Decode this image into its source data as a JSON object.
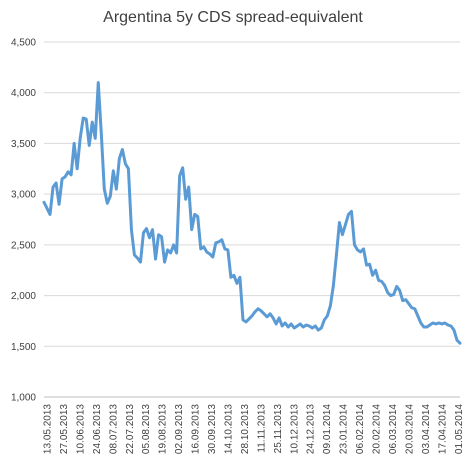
{
  "chart_data": {
    "type": "line",
    "title": "Argentina 5y CDS spread-equivalent",
    "xlabel": "",
    "ylabel": "",
    "ylim": [
      1000,
      4500
    ],
    "yticks": [
      "1,000",
      "1,500",
      "2,000",
      "2,500",
      "3,000",
      "3,500",
      "4,000",
      "4,500"
    ],
    "ytick_values": [
      1000,
      1500,
      2000,
      2500,
      3000,
      3500,
      4000,
      4500
    ],
    "xticks": [
      "13.05.2013",
      "27.05.2013",
      "10.06.2013",
      "24.06.2013",
      "08.07.2013",
      "22.07.2013",
      "05.08.2013",
      "19.08.2013",
      "02.09.2013",
      "16.09.2013",
      "30.09.2013",
      "14.10.2013",
      "28.10.2013",
      "11.11.2013",
      "25.11.2013",
      "10.12.2013",
      "24.12.2013",
      "09.01.2014",
      "23.01.2014",
      "06.02.2014",
      "20.02.2014",
      "06.03.2014",
      "20.03.2014",
      "03.04.2014",
      "17.04.2014",
      "01.05.2014"
    ],
    "grid": true,
    "legend": "none",
    "series_color": "#5b9bd5",
    "values": [
      2920,
      2860,
      2800,
      3070,
      3110,
      2900,
      3150,
      3170,
      3220,
      3190,
      3500,
      3250,
      3550,
      3750,
      3740,
      3480,
      3710,
      3550,
      4100,
      3600,
      3050,
      2910,
      2980,
      3230,
      3050,
      3350,
      3440,
      3300,
      3250,
      2650,
      2400,
      2370,
      2330,
      2620,
      2660,
      2570,
      2650,
      2360,
      2600,
      2580,
      2330,
      2450,
      2420,
      2500,
      2420,
      3180,
      3260,
      2950,
      3070,
      2650,
      2800,
      2780,
      2460,
      2480,
      2430,
      2410,
      2380,
      2520,
      2530,
      2550,
      2460,
      2450,
      2180,
      2200,
      2120,
      2180,
      1760,
      1740,
      1770,
      1800,
      1840,
      1870,
      1850,
      1820,
      1790,
      1820,
      1780,
      1720,
      1780,
      1700,
      1730,
      1690,
      1720,
      1680,
      1700,
      1720,
      1690,
      1710,
      1700,
      1680,
      1700,
      1660,
      1680,
      1760,
      1800,
      1900,
      2100,
      2400,
      2720,
      2600,
      2700,
      2800,
      2830,
      2500,
      2450,
      2430,
      2460,
      2300,
      2310,
      2200,
      2250,
      2150,
      2140,
      2100,
      2030,
      2000,
      2010,
      2090,
      2050,
      1950,
      1960,
      1920,
      1880,
      1870,
      1800,
      1730,
      1690,
      1690,
      1710,
      1730,
      1720,
      1730,
      1720,
      1730,
      1710,
      1700,
      1660,
      1560,
      1530
    ]
  }
}
